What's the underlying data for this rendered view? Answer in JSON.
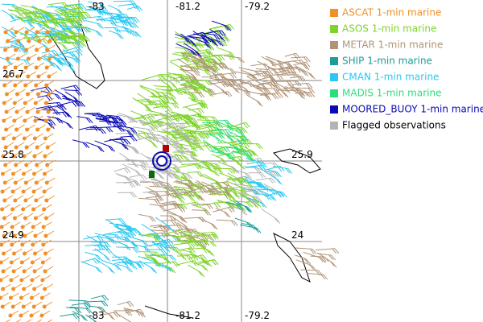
{
  "map": {
    "grid_labels": {
      "top": [
        "-83",
        "-81.2",
        "-79.2"
      ],
      "bottom": [
        "-83",
        "-81.2",
        "-79.2"
      ],
      "left": [
        "26.7",
        "25.8",
        "24.9"
      ],
      "right": [
        "25.9",
        "24"
      ]
    }
  },
  "legend": [
    {
      "label": "ASCAT 1-min marine",
      "color": "#f0902a"
    },
    {
      "label": "ASOS 1-min marine",
      "color": "#7ed42a"
    },
    {
      "label": "METAR 1-min marine",
      "color": "#b09478"
    },
    {
      "label": "SHIP 1-min marine",
      "color": "#1e9c96"
    },
    {
      "label": "CMAN 1-min marine",
      "color": "#2ac8f2"
    },
    {
      "label": "MADIS 1-min marine",
      "color": "#2ade7c"
    },
    {
      "label": "MOORED_BUOY 1-min marine",
      "color": "#0a0ab4"
    },
    {
      "label": "Flagged observations",
      "color": "#b4b4b4"
    }
  ]
}
